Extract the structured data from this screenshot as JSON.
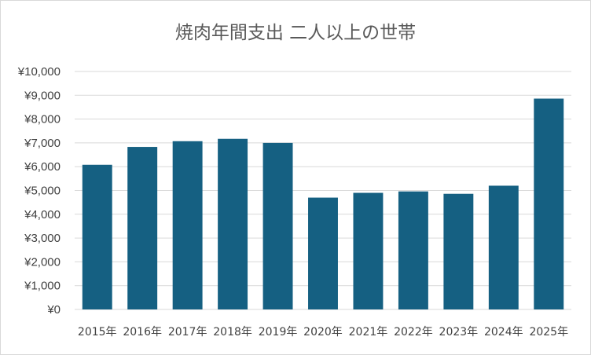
{
  "chart_data": {
    "type": "bar",
    "title": "焼肉年間支出 二人以上の世帯",
    "categories": [
      "2015年",
      "2016年",
      "2017年",
      "2018年",
      "2019年",
      "2020年",
      "2021年",
      "2022年",
      "2023年",
      "2024年",
      "2025年"
    ],
    "values": [
      6080,
      6830,
      7070,
      7170,
      7000,
      4700,
      4900,
      4960,
      4860,
      5200,
      8860
    ],
    "ylim": [
      0,
      10000
    ],
    "yticks": [
      0,
      1000,
      2000,
      3000,
      4000,
      5000,
      6000,
      7000,
      8000,
      9000,
      10000
    ],
    "ytick_labels": [
      "¥0",
      "¥1,000",
      "¥2,000",
      "¥3,000",
      "¥4,000",
      "¥5,000",
      "¥6,000",
      "¥7,000",
      "¥8,000",
      "¥9,000",
      "¥10,000"
    ],
    "grid": true,
    "bar_color": "#156082",
    "grid_color": "#d9d9d9"
  }
}
